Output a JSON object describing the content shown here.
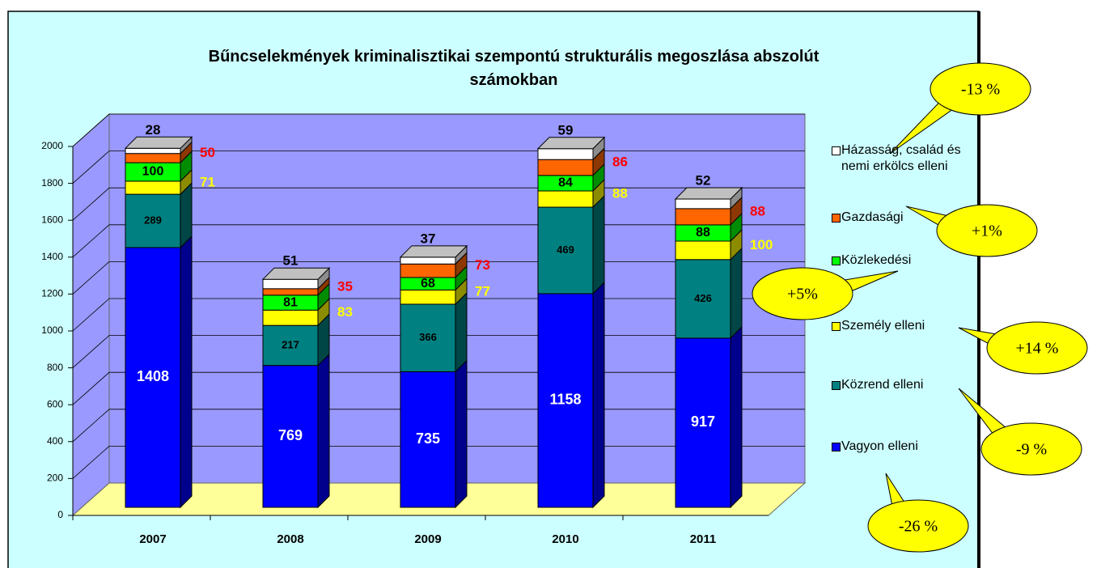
{
  "chart_data": {
    "type": "bar3d_stacked",
    "title": "Bűncselekmények kriminalisztikai szempontú strukturális megoszlása abszolút számokban",
    "categories": [
      "2007",
      "2008",
      "2009",
      "2010",
      "2011"
    ],
    "series": [
      {
        "name": "Vagyon elleni",
        "color": "#0000ff",
        "values": [
          1408,
          769,
          735,
          1158,
          917
        ]
      },
      {
        "name": "Közrend elleni",
        "color": "#008080",
        "values": [
          289,
          217,
          366,
          469,
          426
        ]
      },
      {
        "name": "Személy elleni",
        "color": "#ffff00",
        "values": [
          71,
          83,
          77,
          88,
          100
        ]
      },
      {
        "name": "Közlekedési",
        "color": "#00ff00",
        "values": [
          100,
          81,
          68,
          84,
          88
        ]
      },
      {
        "name": "Gazdasági",
        "color": "#ff6600",
        "values": [
          50,
          35,
          73,
          86,
          88
        ]
      },
      {
        "name": "Házasság, család és nemi erkölcs elleni",
        "color": "#ffffff",
        "values": [
          28,
          51,
          37,
          59,
          52
        ]
      }
    ],
    "ylim": [
      0,
      2000
    ],
    "yticks": [
      0,
      200,
      400,
      600,
      800,
      1000,
      1200,
      1400,
      1600,
      1800,
      2000
    ],
    "grid": true,
    "legend": "right",
    "annotations": [
      "-26 %",
      "-9 %",
      "+14 %",
      "+5%",
      "+1%",
      "-13 %"
    ]
  }
}
